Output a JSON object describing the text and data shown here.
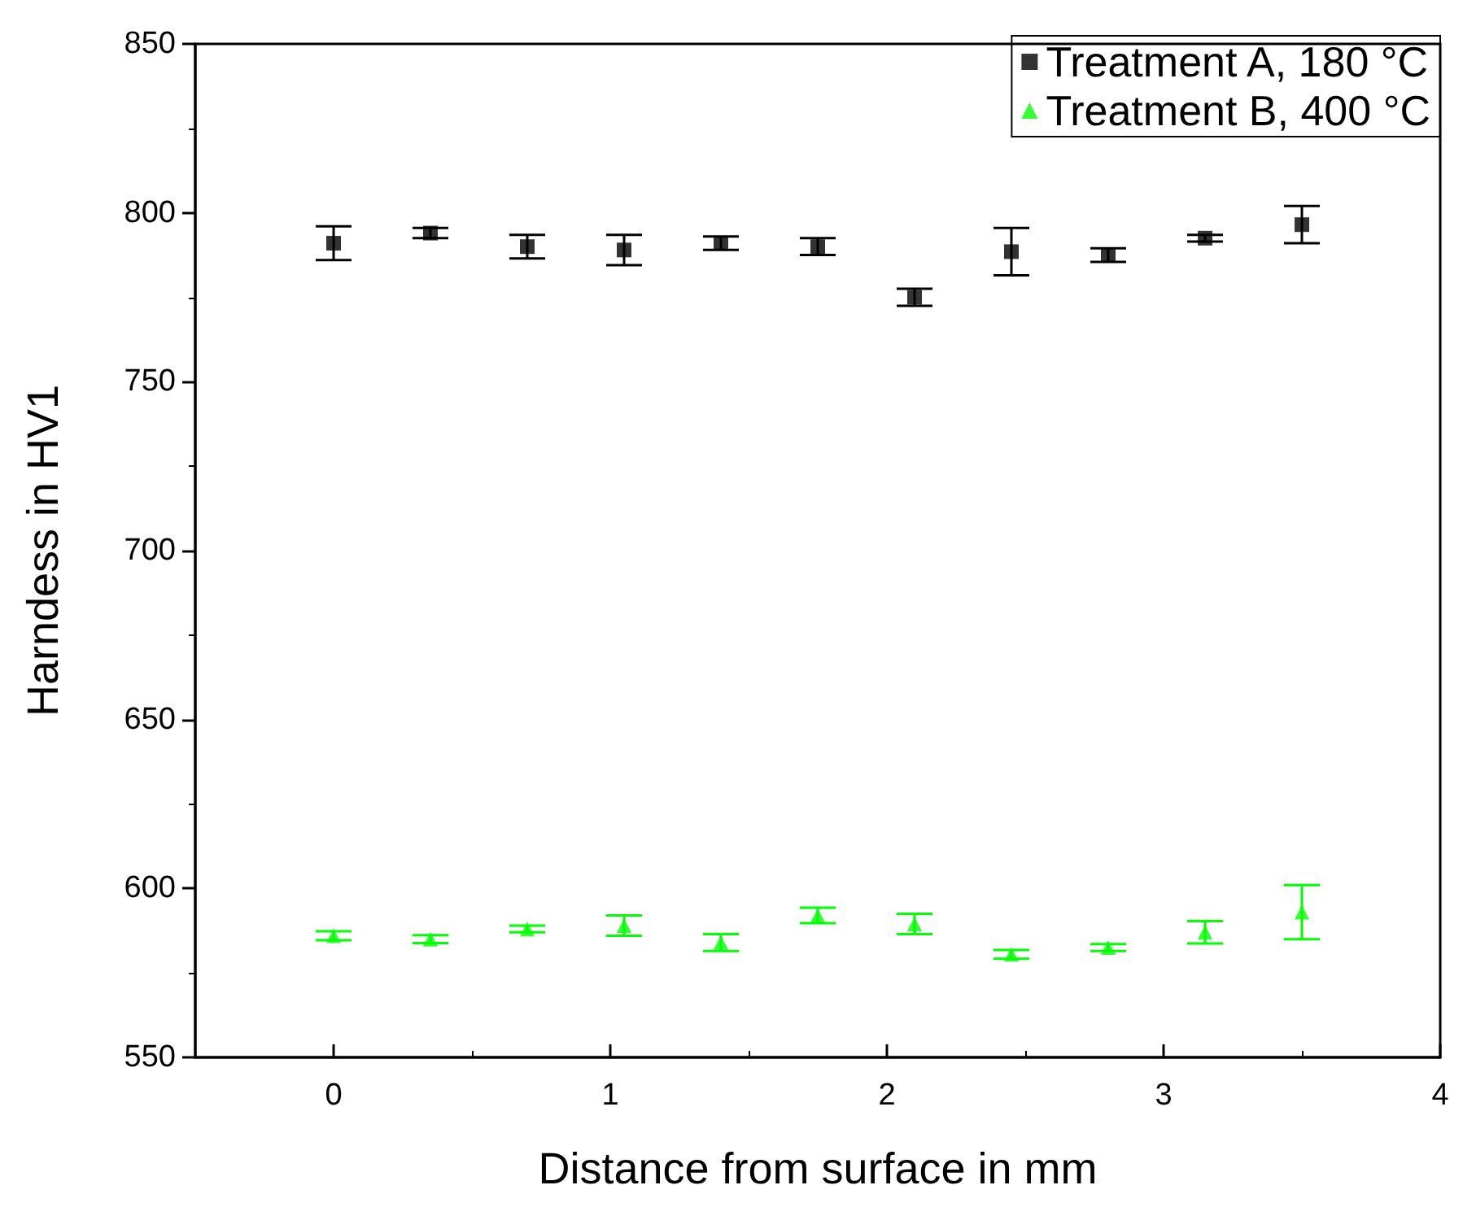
{
  "chart_data": {
    "type": "scatter",
    "xlabel": "Distance from surface in mm",
    "ylabel": "Harndess in HV1",
    "x": [
      0,
      0.35,
      0.7,
      1.05,
      1.4,
      1.75,
      2.1,
      2.45,
      2.8,
      3.15,
      3.5
    ],
    "series": [
      {
        "name": "Treatment A, 180 °C",
        "color": "#000000",
        "marker": "square",
        "values": [
          791,
          794,
          790,
          789,
          791,
          790,
          775,
          788.5,
          787.5,
          792.5,
          796.5
        ],
        "errors": [
          5,
          1.5,
          3.5,
          4.5,
          2,
          2.5,
          2.5,
          7,
          2,
          1,
          5.5
        ]
      },
      {
        "name": "Treatment B, 400 °C",
        "color": "#00ff00",
        "marker": "triangle",
        "values": [
          586,
          585,
          588,
          589,
          584,
          592,
          589.5,
          580.5,
          582.5,
          587,
          593
        ],
        "errors": [
          1.3,
          1.2,
          1,
          3,
          2.5,
          2.3,
          3,
          1.3,
          1,
          3.3,
          8
        ]
      }
    ],
    "xlim": [
      -0.5,
      4
    ],
    "xticks": [
      0,
      1,
      2,
      3,
      4
    ],
    "ylim": [
      550,
      850
    ],
    "yticks": [
      550,
      600,
      650,
      700,
      750,
      800,
      850
    ],
    "grid": false,
    "legend": "top right"
  }
}
